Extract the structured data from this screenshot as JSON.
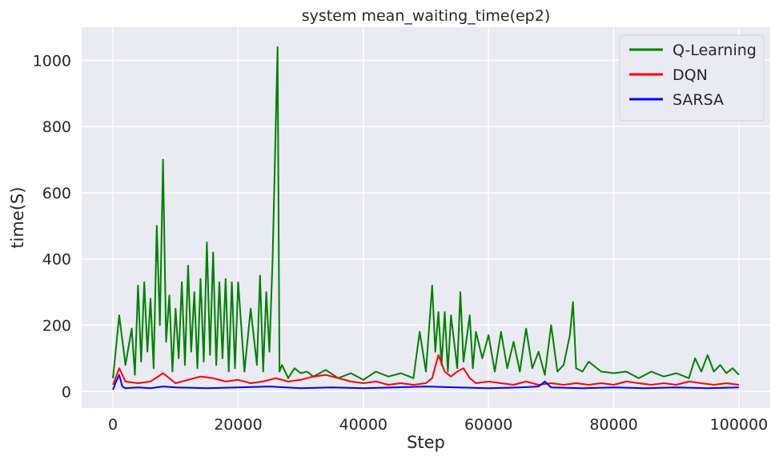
{
  "chart_data": {
    "type": "line",
    "title": "system mean_waiting_time(ep2)",
    "xlabel": "Step",
    "ylabel": "time(S)",
    "xlim": [
      -5000,
      105000
    ],
    "ylim": [
      -50,
      1100
    ],
    "xticks": [
      0,
      20000,
      40000,
      60000,
      80000,
      100000
    ],
    "yticks": [
      0,
      200,
      400,
      600,
      800,
      1000
    ],
    "grid": true,
    "legend_position": "top-right",
    "series": [
      {
        "name": "Q-Learning",
        "color": "#008000",
        "x": [
          0,
          1000,
          2000,
          3000,
          3500,
          4000,
          4500,
          5000,
          5500,
          6000,
          6500,
          7000,
          7500,
          8000,
          8500,
          9000,
          9500,
          10000,
          10500,
          11000,
          11500,
          12000,
          12500,
          13000,
          13500,
          14000,
          14500,
          15000,
          15500,
          16000,
          16500,
          17000,
          17500,
          18000,
          18500,
          19000,
          19500,
          20000,
          21000,
          22000,
          23000,
          23500,
          24000,
          24500,
          25000,
          25500,
          26000,
          26300,
          26600,
          27000,
          28000,
          29000,
          30000,
          31000,
          32000,
          34000,
          36000,
          38000,
          40000,
          42000,
          44000,
          46000,
          48000,
          49000,
          50000,
          51000,
          51500,
          52000,
          52500,
          53000,
          53500,
          54000,
          55000,
          55500,
          56000,
          57000,
          57500,
          58000,
          59000,
          60000,
          61000,
          62000,
          63000,
          64000,
          65000,
          66000,
          67000,
          68000,
          69000,
          70000,
          71000,
          72000,
          73000,
          73500,
          74000,
          75000,
          76000,
          78000,
          80000,
          82000,
          84000,
          86000,
          88000,
          90000,
          92000,
          93000,
          94000,
          95000,
          96000,
          97000,
          98000,
          99000,
          100000
        ],
        "y": [
          40,
          230,
          80,
          190,
          50,
          320,
          90,
          330,
          120,
          280,
          70,
          500,
          200,
          700,
          150,
          290,
          60,
          250,
          100,
          330,
          80,
          380,
          120,
          300,
          70,
          340,
          90,
          450,
          110,
          420,
          80,
          330,
          100,
          340,
          60,
          330,
          70,
          330,
          60,
          250,
          80,
          350,
          60,
          300,
          120,
          400,
          800,
          1040,
          60,
          80,
          40,
          70,
          55,
          60,
          45,
          65,
          40,
          55,
          35,
          60,
          45,
          55,
          40,
          180,
          60,
          320,
          120,
          240,
          80,
          240,
          60,
          230,
          70,
          300,
          90,
          230,
          70,
          180,
          100,
          170,
          60,
          180,
          70,
          150,
          60,
          190,
          70,
          120,
          50,
          200,
          60,
          80,
          170,
          270,
          70,
          60,
          90,
          60,
          55,
          60,
          40,
          60,
          45,
          55,
          40,
          100,
          60,
          110,
          60,
          80,
          55,
          70,
          50
        ]
      },
      {
        "name": "DQN",
        "color": "#ff0000",
        "x": [
          0,
          1000,
          2000,
          4000,
          6000,
          8000,
          10000,
          12000,
          14000,
          16000,
          18000,
          20000,
          22000,
          24000,
          26000,
          28000,
          30000,
          32000,
          34000,
          36000,
          38000,
          40000,
          42000,
          44000,
          46000,
          48000,
          50000,
          51000,
          52000,
          53000,
          54000,
          55000,
          56000,
          57000,
          58000,
          60000,
          62000,
          64000,
          66000,
          68000,
          70000,
          72000,
          74000,
          76000,
          78000,
          80000,
          82000,
          84000,
          86000,
          88000,
          90000,
          92000,
          94000,
          96000,
          98000,
          100000
        ],
        "y": [
          20,
          70,
          30,
          25,
          30,
          55,
          25,
          35,
          45,
          40,
          30,
          35,
          25,
          30,
          40,
          30,
          35,
          45,
          50,
          40,
          30,
          25,
          30,
          20,
          25,
          20,
          25,
          40,
          110,
          60,
          45,
          60,
          70,
          40,
          25,
          30,
          25,
          20,
          30,
          20,
          25,
          20,
          25,
          20,
          25,
          20,
          30,
          25,
          20,
          25,
          20,
          30,
          25,
          20,
          25,
          20
        ]
      },
      {
        "name": "SARSA",
        "color": "#0000ff",
        "x": [
          0,
          500,
          1000,
          1500,
          2000,
          4000,
          6000,
          8000,
          10000,
          15000,
          20000,
          25000,
          30000,
          35000,
          40000,
          45000,
          50000,
          55000,
          60000,
          65000,
          68000,
          69000,
          70000,
          75000,
          80000,
          85000,
          90000,
          95000,
          100000
        ],
        "y": [
          5,
          30,
          50,
          15,
          10,
          12,
          10,
          15,
          12,
          10,
          12,
          15,
          10,
          12,
          10,
          12,
          15,
          12,
          10,
          12,
          15,
          30,
          12,
          10,
          12,
          10,
          12,
          10,
          12
        ]
      }
    ]
  }
}
